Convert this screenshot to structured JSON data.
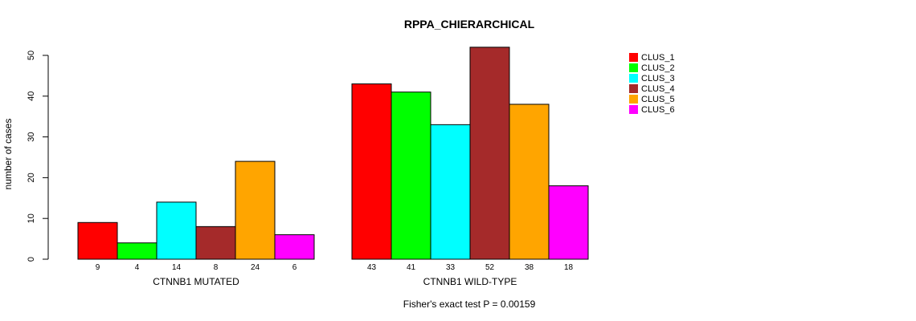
{
  "chart_data": {
    "type": "bar",
    "title": "RPPA_CHIERARCHICAL",
    "ylabel": "number of cases",
    "xlabel": "Fisher's exact test P = 0.00159",
    "ylim": [
      0,
      50
    ],
    "yticks": [
      0,
      10,
      20,
      30,
      40,
      50
    ],
    "groups": [
      "CTNNB1 MUTATED",
      "CTNNB1 WILD-TYPE"
    ],
    "series": [
      {
        "name": "CLUS_1",
        "color": "#ff0000",
        "values": [
          9,
          43
        ]
      },
      {
        "name": "CLUS_2",
        "color": "#00ff00",
        "values": [
          4,
          41
        ]
      },
      {
        "name": "CLUS_3",
        "color": "#00ffff",
        "values": [
          14,
          33
        ]
      },
      {
        "name": "CLUS_4",
        "color": "#a52a2a",
        "values": [
          8,
          52
        ]
      },
      {
        "name": "CLUS_5",
        "color": "#ffa500",
        "values": [
          24,
          38
        ]
      },
      {
        "name": "CLUS_6",
        "color": "#ff00ff",
        "values": [
          6,
          18
        ]
      }
    ],
    "legend_position": "top-right"
  }
}
